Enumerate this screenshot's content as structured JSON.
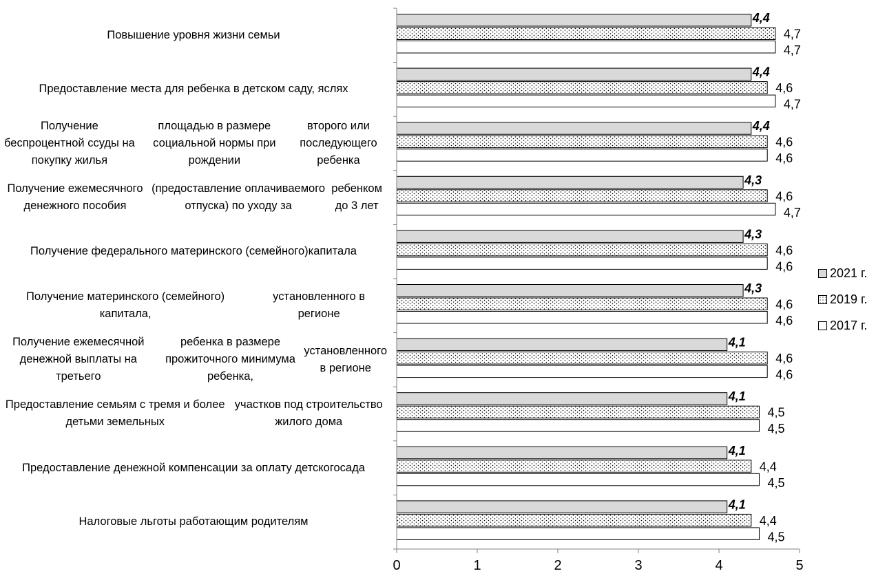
{
  "chart_data": {
    "type": "bar",
    "orientation": "horizontal",
    "categories": [
      "Повышение уровня жизни семьи",
      "Предоставление места для ребенка в детском саду, яслях",
      "Получение беспроцентной ссуды на покупку жилья площадью в размере социальной нормы при рождении второго или последующего ребенка",
      "Получение ежемесячного денежного пособия (предоставление оплачиваемого отпуска) по уходу за ребенком до 3 лет",
      "Получение федерального материнского (семейного) капитала",
      "Получение материнского (семейного) капитала, установленного в регионе",
      "Получение ежемесячной денежной выплаты на третьего ребенка в размере прожиточного минимума ребенка, установленного в регионе",
      "Предоставление семьям с тремя и более детьми земельных участков под строительство жилого дома",
      "Предоставление денежной компенсации за оплату детского сада",
      "Налоговые льготы работающим родителям"
    ],
    "category_lines": [
      [
        "Повышение уровня жизни семьи"
      ],
      [
        "Предоставление места для ребенка в детском саду, яслях"
      ],
      [
        "Получение беспроцентной ссуды на покупку жилья",
        "площадью в размере социальной нормы при рождении",
        "второго или последующего ребенка"
      ],
      [
        "Получение ежемесячного денежного пособия",
        "(предоставление оплачиваемого отпуска) по уходу за",
        "ребенком до 3 лет"
      ],
      [
        "Получение федерального материнского (семейного)",
        "капитала"
      ],
      [
        "Получение материнского (семейного) капитала,",
        "установленного в регионе"
      ],
      [
        "Получение ежемесячной денежной выплаты на третьего",
        "ребенка в размере прожиточного минимума ребенка,",
        "установленного в регионе"
      ],
      [
        "Предоставление семьям с тремя и более детьми земельных",
        "участков под строительство жилого дома"
      ],
      [
        "Предоставление денежной компенсации за оплату детского",
        "сада"
      ],
      [
        "Налоговые льготы работающим родителям"
      ]
    ],
    "series": [
      {
        "name": "2021 г.",
        "fill": "#d9d9d9",
        "pattern": "solid",
        "values": [
          4.4,
          4.4,
          4.4,
          4.3,
          4.3,
          4.3,
          4.1,
          4.1,
          4.1,
          4.1
        ],
        "labels": [
          "4,4",
          "4,4",
          "4,4",
          "4,3",
          "4,3",
          "4,3",
          "4,1",
          "4,1",
          "4,1",
          "4,1"
        ]
      },
      {
        "name": "2019 г.",
        "fill": "#ffffff",
        "pattern": "dots",
        "values": [
          4.7,
          4.6,
          4.6,
          4.6,
          4.6,
          4.6,
          4.6,
          4.5,
          4.4,
          4.4
        ],
        "labels": [
          "4,7",
          "4,6",
          "4,6",
          "4,6",
          "4,6",
          "4,6",
          "4,6",
          "4,5",
          "4,4",
          "4,4"
        ]
      },
      {
        "name": "2017 г.",
        "fill": "#ffffff",
        "pattern": "solid",
        "values": [
          4.7,
          4.7,
          4.6,
          4.7,
          4.6,
          4.6,
          4.6,
          4.5,
          4.5,
          4.5
        ],
        "labels": [
          "4,7",
          "4,7",
          "4,6",
          "4,7",
          "4,6",
          "4,6",
          "4,6",
          "4,5",
          "4,5",
          "4,5"
        ]
      }
    ],
    "xlim": [
      0,
      5
    ],
    "x_ticks": [
      "0",
      "1",
      "2",
      "3",
      "4",
      "5"
    ],
    "grid": false,
    "legend_position": "right"
  }
}
